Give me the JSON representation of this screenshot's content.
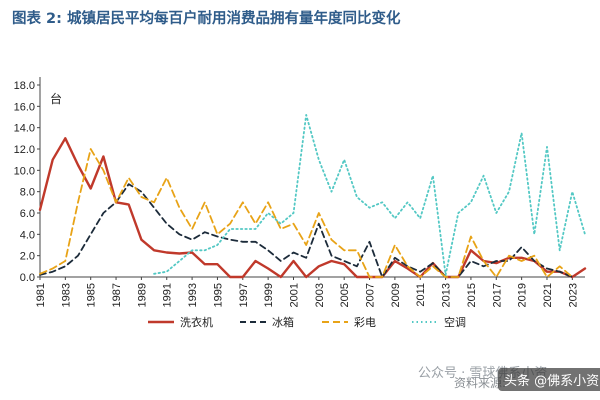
{
  "title": "图表 2: 城镇居民平均每百户耐用消费品拥有量年度同比变化",
  "chart_data": {
    "type": "line",
    "unit_label": "台",
    "ylim": [
      0,
      18
    ],
    "yticks": [
      "0.0",
      "2.0",
      "4.0",
      "6.0",
      "8.0",
      "10.0",
      "12.0",
      "14.0",
      "16.0",
      "18.0"
    ],
    "xticks": [
      "1981",
      "1983",
      "1985",
      "1987",
      "1989",
      "1991",
      "1993",
      "1995",
      "1997",
      "1999",
      "2001",
      "2003",
      "2005",
      "2007",
      "2009",
      "2011",
      "2013",
      "2015",
      "2017",
      "2019",
      "2021",
      "2023"
    ],
    "series": [
      {
        "name": "洗衣机",
        "color": "#c0392b",
        "dash": "",
        "x": [
          1981,
          1982,
          1983,
          1984,
          1985,
          1986,
          1987,
          1988,
          1989,
          1990,
          1991,
          1992,
          1993,
          1994,
          1995,
          1996,
          1997,
          1998,
          1999,
          2000,
          2001,
          2002,
          2003,
          2004,
          2005,
          2006,
          2007,
          2008,
          2009,
          2010,
          2011,
          2012,
          2013,
          2014,
          2015,
          2016,
          2017,
          2018,
          2019,
          2020,
          2021,
          2022,
          2023,
          2024
        ],
        "values": [
          6.3,
          11.0,
          13.0,
          10.5,
          8.3,
          11.3,
          7.0,
          6.8,
          3.5,
          2.5,
          2.3,
          2.2,
          2.3,
          1.2,
          1.2,
          0,
          0,
          1.5,
          0.8,
          0,
          1.5,
          0,
          1.0,
          1.5,
          1.2,
          0,
          0,
          0,
          1.5,
          0.8,
          0,
          1.3,
          0,
          0,
          2.5,
          1.5,
          1.3,
          1.8,
          1.8,
          1.5,
          0.5,
          0.5,
          0,
          0.8
        ]
      },
      {
        "name": "冰箱",
        "color": "#1c2b3a",
        "dash": "6,4",
        "x": [
          1981,
          1982,
          1983,
          1984,
          1985,
          1986,
          1987,
          1988,
          1989,
          1990,
          1991,
          1992,
          1993,
          1994,
          1995,
          1996,
          1997,
          1998,
          1999,
          2000,
          2001,
          2002,
          2003,
          2004,
          2005,
          2006,
          2007,
          2008,
          2009,
          2010,
          2011,
          2012,
          2013,
          2014,
          2015,
          2016,
          2017,
          2018,
          2019,
          2020,
          2021,
          2022,
          2023
        ],
        "values": [
          0.2,
          0.5,
          1.0,
          2.0,
          4.0,
          6.0,
          7.0,
          8.7,
          8.0,
          6.5,
          5.0,
          4.0,
          3.5,
          4.2,
          3.8,
          3.5,
          3.3,
          3.3,
          2.5,
          1.5,
          2.3,
          1.8,
          5.0,
          2.0,
          1.5,
          1.0,
          3.3,
          0,
          1.8,
          1.0,
          0.5,
          1.3,
          0,
          0,
          1.5,
          1.0,
          1.5,
          1.5,
          2.8,
          1.5,
          0.8,
          0.5,
          0
        ]
      },
      {
        "name": "彩电",
        "color": "#e8a317",
        "dash": "7,4",
        "x": [
          1981,
          1982,
          1983,
          1984,
          1985,
          1986,
          1987,
          1988,
          1989,
          1990,
          1991,
          1992,
          1993,
          1994,
          1995,
          1996,
          1997,
          1998,
          1999,
          2000,
          2001,
          2002,
          2003,
          2004,
          2005,
          2006,
          2007,
          2008,
          2009,
          2010,
          2011,
          2012,
          2013,
          2014,
          2015,
          2016,
          2017,
          2018,
          2019,
          2020,
          2021,
          2022,
          2023
        ],
        "values": [
          0.3,
          0.8,
          1.5,
          7.0,
          12.0,
          10.0,
          7.0,
          9.3,
          7.5,
          7.0,
          9.3,
          6.5,
          4.5,
          7.0,
          4.0,
          5.0,
          7.0,
          5.0,
          7.0,
          4.5,
          5.0,
          3.0,
          6.0,
          3.5,
          2.5,
          2.5,
          0,
          0,
          3.0,
          1.0,
          0,
          1.0,
          0,
          0,
          3.8,
          1.5,
          0,
          2.0,
          1.5,
          2.0,
          0,
          1.0,
          0
        ]
      },
      {
        "name": "空调",
        "color": "#53c8c4",
        "dash": "1.5,3",
        "x": [
          1990,
          1991,
          1992,
          1993,
          1994,
          1995,
          1996,
          1997,
          1998,
          1999,
          2000,
          2001,
          2002,
          2003,
          2004,
          2005,
          2006,
          2007,
          2008,
          2009,
          2010,
          2011,
          2012,
          2013,
          2014,
          2015,
          2016,
          2017,
          2018,
          2019,
          2020,
          2021,
          2022,
          2023,
          2024
        ],
        "values": [
          0.3,
          0.5,
          1.5,
          2.5,
          2.5,
          3.0,
          4.5,
          4.5,
          4.5,
          6.0,
          5.0,
          6.0,
          15.2,
          11.0,
          8.0,
          11.0,
          7.5,
          6.5,
          7.0,
          5.5,
          7.0,
          5.5,
          9.5,
          0.2,
          6.0,
          7.0,
          9.5,
          6.0,
          8.0,
          13.5,
          4.0,
          12.2,
          2.5,
          8.0,
          4.0
        ]
      }
    ]
  },
  "watermark": {
    "source": "资料来源:",
    "account": "公众号 · 雪球佛系小资",
    "badge": "头条 @佛系小资"
  }
}
